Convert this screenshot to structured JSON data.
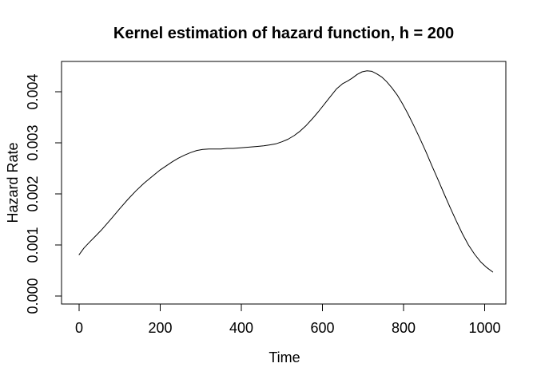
{
  "figure": {
    "background_color": "#ffffff",
    "foreground_color": "#000000"
  },
  "chart_data": {
    "type": "line",
    "title": "Kernel estimation of hazard function, h = 200",
    "xlabel": "Time",
    "ylabel": "Hazard Rate",
    "xlim": [
      0,
      1020
    ],
    "ylim": [
      0,
      0.0044
    ],
    "x_ticks": [
      0,
      200,
      400,
      600,
      800,
      1000
    ],
    "y_ticks": [
      0,
      0.001,
      0.002,
      0.003,
      0.004
    ],
    "y_tick_labels": [
      "0.000",
      "0.001",
      "0.002",
      "0.003",
      "0.004"
    ],
    "grid": false,
    "legend": "none",
    "line_color": "#000000",
    "series": [
      {
        "name": "kernel_hazard_estimate",
        "points": [
          [
            0,
            0.00081
          ],
          [
            12,
            0.00094
          ],
          [
            25,
            0.00105
          ],
          [
            40,
            0.00117
          ],
          [
            57,
            0.00131
          ],
          [
            80,
            0.00152
          ],
          [
            100,
            0.00171
          ],
          [
            120,
            0.00189
          ],
          [
            140,
            0.00206
          ],
          [
            160,
            0.00221
          ],
          [
            180,
            0.00234
          ],
          [
            200,
            0.00247
          ],
          [
            215,
            0.00255
          ],
          [
            230,
            0.00263
          ],
          [
            245,
            0.0027
          ],
          [
            260,
            0.00276
          ],
          [
            275,
            0.00281
          ],
          [
            290,
            0.00285
          ],
          [
            305,
            0.00287
          ],
          [
            320,
            0.00288
          ],
          [
            335,
            0.00288
          ],
          [
            350,
            0.00288
          ],
          [
            365,
            0.00289
          ],
          [
            380,
            0.00289
          ],
          [
            395,
            0.0029
          ],
          [
            410,
            0.00291
          ],
          [
            425,
            0.00292
          ],
          [
            440,
            0.00293
          ],
          [
            455,
            0.00294
          ],
          [
            470,
            0.00296
          ],
          [
            485,
            0.00298
          ],
          [
            500,
            0.00302
          ],
          [
            515,
            0.00307
          ],
          [
            530,
            0.00314
          ],
          [
            545,
            0.00323
          ],
          [
            560,
            0.00334
          ],
          [
            575,
            0.00347
          ],
          [
            590,
            0.00361
          ],
          [
            605,
            0.00376
          ],
          [
            620,
            0.00391
          ],
          [
            635,
            0.00406
          ],
          [
            650,
            0.00416
          ],
          [
            662,
            0.00421
          ],
          [
            674,
            0.00427
          ],
          [
            686,
            0.00434
          ],
          [
            698,
            0.00439
          ],
          [
            710,
            0.00441
          ],
          [
            722,
            0.0044
          ],
          [
            734,
            0.00435
          ],
          [
            746,
            0.00429
          ],
          [
            758,
            0.0042
          ],
          [
            771,
            0.00408
          ],
          [
            784,
            0.00394
          ],
          [
            797,
            0.00377
          ],
          [
            810,
            0.00358
          ],
          [
            825,
            0.00334
          ],
          [
            840,
            0.00309
          ],
          [
            855,
            0.00283
          ],
          [
            870,
            0.00255
          ],
          [
            885,
            0.00228
          ],
          [
            900,
            0.002
          ],
          [
            915,
            0.00173
          ],
          [
            930,
            0.00147
          ],
          [
            945,
            0.00122
          ],
          [
            960,
            0.001
          ],
          [
            975,
            0.00082
          ],
          [
            990,
            0.00067
          ],
          [
            1005,
            0.00056
          ],
          [
            1020,
            0.00047
          ]
        ]
      }
    ]
  }
}
